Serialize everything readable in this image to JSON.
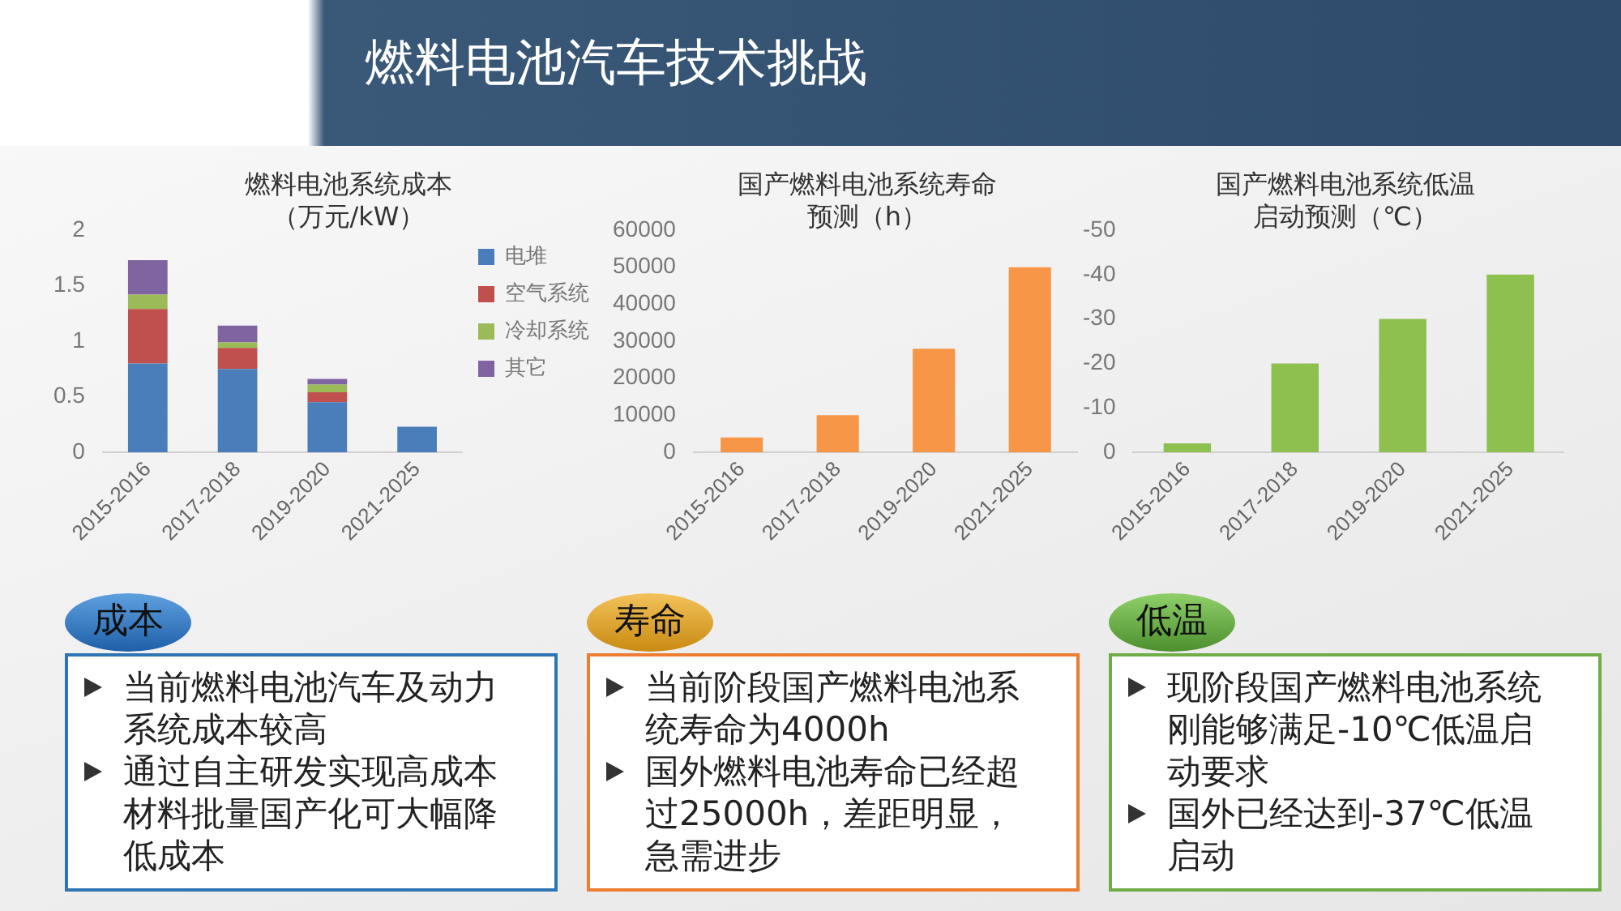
{
  "chart_data": [
    {
      "type": "other",
      "title": "燃料电池汽车技术挑战"
    },
    {
      "type": "bar",
      "title": "燃料电池系统成本（万元/kW）",
      "categories": [
        "2015-2016",
        "2017-2018",
        "2019-2020",
        "2021-2025"
      ],
      "stacked": true,
      "legend": "right",
      "ylim": [
        0,
        2
      ],
      "yticks": [
        0,
        0.5,
        1,
        1.5,
        2
      ],
      "series": [
        {
          "name": "电堆",
          "color": "#4a7ebb",
          "values": [
            0.8,
            0.75,
            0.45,
            0.23
          ]
        },
        {
          "name": "空气系统",
          "color": "#c0504d",
          "values": [
            0.49,
            0.19,
            0.09,
            0
          ]
        },
        {
          "name": "冷却系统",
          "color": "#9bbb59",
          "values": [
            0.13,
            0.05,
            0.07,
            0
          ]
        },
        {
          "name": "其它",
          "color": "#8064a2",
          "values": [
            0.31,
            0.15,
            0.05,
            0
          ]
        }
      ]
    },
    {
      "type": "bar",
      "title": "国产燃料电池系统寿命预测（h）",
      "categories": [
        "2015-2016",
        "2017-2018",
        "2019-2020",
        "2021-2025"
      ],
      "color": "#f79646",
      "values": [
        4000,
        10000,
        28000,
        50000
      ],
      "ylim": [
        0,
        60000
      ],
      "yticks": [
        0,
        10000,
        20000,
        30000,
        40000,
        50000,
        60000
      ]
    },
    {
      "type": "bar",
      "title": "国产燃料电池系统低温启动预测（℃）",
      "categories": [
        "2015-2016",
        "2017-2018",
        "2019-2020",
        "2021-2025"
      ],
      "color": "#8dc04f",
      "values": [
        -2,
        -20,
        -30,
        -40
      ],
      "ylim": [
        0,
        -50
      ],
      "yticks": [
        0,
        -10,
        -20,
        -30,
        -40,
        -50
      ]
    },
    {
      "type": "other",
      "title": "成本",
      "annotations": [
        "当前燃料电池汽车及动力系统成本较高",
        "通过自主研发实现高成本材料批量国产化可大幅降低成本"
      ]
    },
    {
      "type": "other",
      "title": "寿命",
      "annotations": [
        "当前阶段国产燃料电池系统寿命为4000h",
        "国外燃料电池寿命已经超过25000h，差距明显，急需进步"
      ]
    },
    {
      "type": "other",
      "title": "低温",
      "annotations": [
        "现阶段国产燃料电池系统刚能够满足-10℃低温启动要求",
        "国外已经达到-37℃低温启动"
      ]
    }
  ]
}
